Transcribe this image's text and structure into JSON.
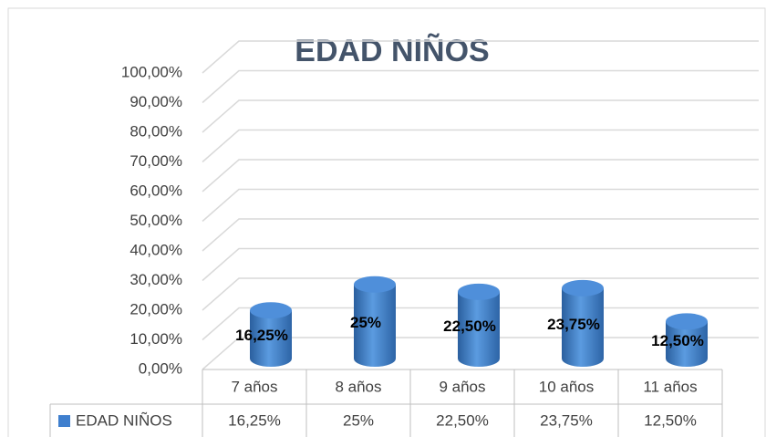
{
  "chart_data": {
    "type": "cylinder",
    "title": "EDAD NIÑOS",
    "categories": [
      "7 años",
      "8 años",
      "9 años",
      "10 años",
      "11 años"
    ],
    "series": [
      {
        "name": "EDAD NIÑOS",
        "color": "#3f7fce",
        "values": [
          16.25,
          25,
          22.5,
          23.75,
          12.5
        ],
        "value_labels": [
          "16,25%",
          "25%",
          "22,50%",
          "23,75%",
          "12,50%"
        ]
      }
    ],
    "ylim": [
      0,
      100
    ],
    "yticks": [
      {
        "value": 0,
        "label": "0,00%"
      },
      {
        "value": 10,
        "label": "10,00%"
      },
      {
        "value": 20,
        "label": "20,00%"
      },
      {
        "value": 30,
        "label": "30,00%"
      },
      {
        "value": 40,
        "label": "40,00%"
      },
      {
        "value": 50,
        "label": "50,00%"
      },
      {
        "value": 60,
        "label": "60,00%"
      },
      {
        "value": 70,
        "label": "70,00%"
      },
      {
        "value": 80,
        "label": "80,00%"
      },
      {
        "value": 90,
        "label": "90,00%"
      },
      {
        "value": 100,
        "label": "100,00%"
      }
    ],
    "grid": true
  }
}
